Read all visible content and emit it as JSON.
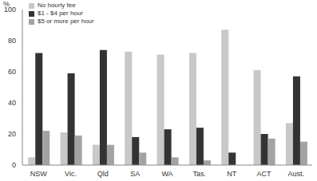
{
  "chart_data": {
    "type": "bar",
    "ylabel": "%",
    "categories": [
      "NSW",
      "Vic.",
      "Qld",
      "SA",
      "WA",
      "Tas.",
      "NT",
      "ACT",
      "Aust."
    ],
    "series": [
      {
        "name": "No hourly fee",
        "color": "#c8c8c8",
        "values": [
          5,
          21,
          13,
          73,
          71,
          72,
          87,
          61,
          27
        ]
      },
      {
        "name": "$1 - $4 per hour",
        "color": "#333333",
        "values": [
          72,
          59,
          74,
          18,
          23,
          24,
          8,
          20,
          57
        ]
      },
      {
        "name": "$5 or more per hour",
        "color": "#a3a3a3",
        "values": [
          22,
          19,
          13,
          8,
          5,
          3,
          0,
          17,
          15
        ]
      }
    ],
    "ylim": [
      0,
      100
    ],
    "yticks": [
      0,
      20,
      40,
      60,
      80,
      100
    ],
    "grid": false,
    "legend": "top-left"
  }
}
